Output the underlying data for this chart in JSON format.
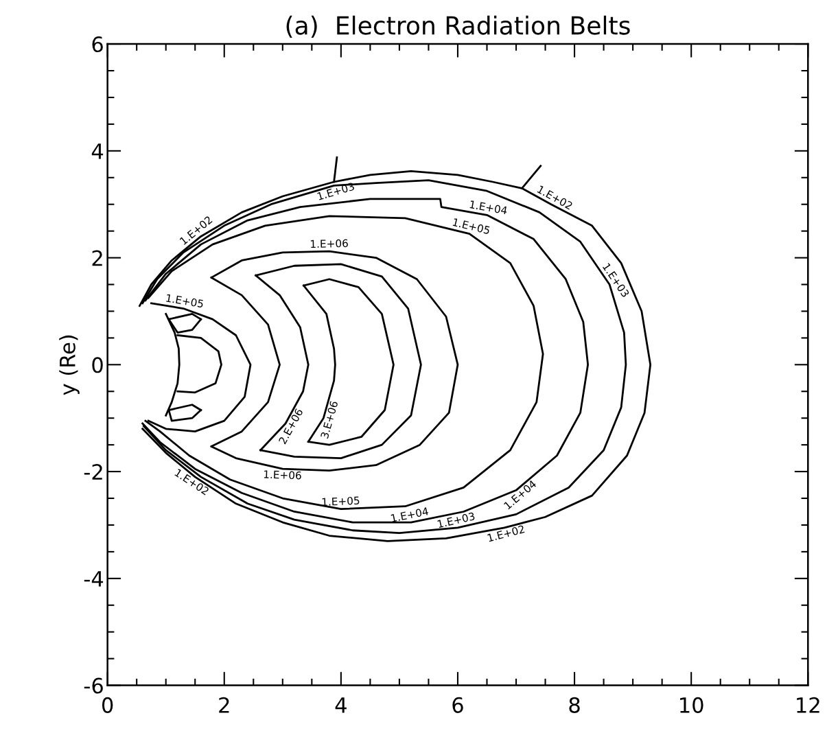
{
  "chart_data": {
    "type": "line",
    "title": "(a)  Electron Radiation Belts",
    "ylabel": "y (Re)",
    "xlim": [
      0,
      12
    ],
    "ylim": [
      -6,
      6
    ],
    "xticks": [
      0,
      2,
      4,
      6,
      8,
      10,
      12
    ],
    "yticks": [
      -6,
      -4,
      -2,
      0,
      2,
      4,
      6
    ],
    "grid": false,
    "marker": "none",
    "line_style": "solid",
    "series": [
      {
        "color": "#000000",
        "x": [
          0.55,
          0.75,
          1.1,
          1.6,
          2.3,
          3.0,
          3.88,
          4.5,
          5.2,
          6.0,
          6.6,
          7.1,
          7.6,
          8.3,
          8.8,
          9.15,
          9.3,
          9.2,
          8.9,
          8.3,
          7.5,
          6.8,
          5.8,
          4.8,
          3.8,
          3.0,
          2.2,
          1.5,
          1.0,
          0.6
        ],
        "values": [
          1.1,
          1.5,
          1.95,
          2.4,
          2.85,
          3.15,
          3.42,
          3.55,
          3.62,
          3.55,
          3.42,
          3.3,
          3.0,
          2.6,
          1.9,
          1.0,
          0.0,
          -0.9,
          -1.7,
          -2.45,
          -2.85,
          -3.05,
          -3.25,
          -3.3,
          -3.2,
          -2.95,
          -2.6,
          -2.1,
          -1.65,
          -1.2
        ]
      },
      {
        "color": "#000000",
        "x": [
          3.88,
          3.93
        ],
        "values": [
          3.42,
          3.88
        ]
      },
      {
        "color": "#000000",
        "x": [
          7.1,
          7.42
        ],
        "values": [
          3.3,
          3.72
        ]
      },
      {
        "color": "#000000",
        "x": [
          0.6,
          0.85,
          1.3,
          2.0,
          2.8,
          3.88,
          4.6,
          5.5,
          6.5,
          7.4,
          8.1,
          8.6,
          8.85,
          8.88,
          8.8,
          8.5,
          7.9,
          7.0,
          6.0,
          5.0,
          4.2,
          3.2,
          2.4,
          1.6,
          1.0,
          0.62
        ],
        "values": [
          1.15,
          1.6,
          2.1,
          2.6,
          3.0,
          3.35,
          3.4,
          3.45,
          3.25,
          2.85,
          2.3,
          1.5,
          0.6,
          0.0,
          -0.8,
          -1.6,
          -2.3,
          -2.8,
          -3.05,
          -3.15,
          -3.1,
          -2.9,
          -2.6,
          -2.1,
          -1.6,
          -1.15
        ]
      },
      {
        "color": "#000000",
        "x": [
          0.65,
          1.0,
          1.6,
          2.4,
          3.3,
          4.5,
          5.7,
          5.72,
          6.5,
          7.3,
          7.85,
          8.15,
          8.23,
          8.1,
          7.7,
          7.0,
          6.1,
          5.2,
          4.2,
          3.2,
          2.3,
          1.5,
          0.9,
          0.6
        ],
        "values": [
          1.2,
          1.7,
          2.25,
          2.7,
          2.95,
          3.1,
          3.1,
          2.95,
          2.8,
          2.35,
          1.6,
          0.8,
          0.0,
          -0.9,
          -1.7,
          -2.35,
          -2.75,
          -2.95,
          -2.95,
          -2.75,
          -2.4,
          -1.95,
          -1.45,
          -1.1
        ]
      },
      {
        "color": "#000000",
        "x": [
          0.7,
          1.1,
          1.8,
          2.7,
          3.8,
          5.1,
          6.2,
          6.9,
          7.3,
          7.46,
          7.35,
          6.9,
          6.1,
          5.1,
          4.0,
          3.0,
          2.1,
          1.4,
          0.9,
          0.65
        ],
        "values": [
          1.25,
          1.75,
          2.25,
          2.6,
          2.78,
          2.74,
          2.45,
          1.9,
          1.1,
          0.2,
          -0.7,
          -1.6,
          -2.3,
          -2.65,
          -2.7,
          -2.5,
          -2.15,
          -1.7,
          -1.25,
          -1.05
        ]
      },
      {
        "color": "#000000",
        "x": [
          0.75,
          1.3,
          1.8,
          2.2,
          2.45,
          2.35,
          2.0,
          1.5,
          1.0,
          0.7
        ],
        "values": [
          1.15,
          1.05,
          0.85,
          0.55,
          0.0,
          -0.6,
          -1.05,
          -1.25,
          -1.2,
          -1.05
        ]
      },
      {
        "color": "#000000",
        "x": [
          1.78,
          2.3,
          3.0,
          3.8,
          4.6,
          5.3,
          5.8,
          6.0,
          5.85,
          5.35,
          4.6,
          3.8,
          3.0,
          2.2,
          1.78
        ],
        "values": [
          1.63,
          1.95,
          2.1,
          2.12,
          2.0,
          1.6,
          0.9,
          0.0,
          -0.9,
          -1.5,
          -1.88,
          -1.98,
          -1.95,
          -1.75,
          -1.53
        ]
      },
      {
        "color": "#000000",
        "x": [
          1.78,
          2.3,
          2.75,
          2.95,
          2.75,
          2.3,
          1.78
        ],
        "values": [
          1.63,
          1.3,
          0.75,
          0.0,
          -0.7,
          -1.25,
          -1.53
        ]
      },
      {
        "color": "#000000",
        "x": [
          2.54,
          3.2,
          4.0,
          4.7,
          5.15,
          5.37,
          5.2,
          4.7,
          4.0,
          3.2,
          2.62
        ],
        "values": [
          1.67,
          1.85,
          1.88,
          1.65,
          1.05,
          0.0,
          -0.95,
          -1.5,
          -1.75,
          -1.72,
          -1.6
        ]
      },
      {
        "color": "#000000",
        "x": [
          2.54,
          2.95,
          3.3,
          3.44,
          3.35,
          3.05,
          2.62
        ],
        "values": [
          1.67,
          1.3,
          0.7,
          0.0,
          -0.5,
          -1.1,
          -1.6
        ]
      },
      {
        "color": "#000000",
        "x": [
          3.36,
          3.8,
          4.3,
          4.7,
          4.9,
          4.75,
          4.35,
          3.8,
          3.44
        ],
        "values": [
          1.48,
          1.6,
          1.45,
          0.95,
          0.0,
          -0.85,
          -1.35,
          -1.5,
          -1.44
        ]
      },
      {
        "color": "#000000",
        "x": [
          3.36,
          3.75,
          3.88,
          3.9,
          3.88,
          3.7,
          3.44
        ],
        "values": [
          1.48,
          0.95,
          0.3,
          0.0,
          -0.3,
          -1.0,
          -1.44
        ]
      },
      {
        "color": "#000000",
        "x": [
          1.2,
          1.6,
          1.9,
          1.95,
          1.85,
          1.5,
          1.2
        ],
        "values": [
          0.55,
          0.5,
          0.25,
          0.0,
          -0.35,
          -0.52,
          -0.5
        ]
      },
      {
        "color": "#000000",
        "x": [
          1.0,
          1.15,
          1.22,
          1.23,
          1.2,
          1.1,
          1.0
        ],
        "values": [
          0.95,
          0.6,
          0.3,
          0.0,
          -0.35,
          -0.7,
          -0.95
        ]
      },
      {
        "color": "#000000",
        "x": [
          1.05,
          1.45,
          1.6
        ],
        "values": [
          0.85,
          0.95,
          0.85
        ]
      },
      {
        "color": "#000000",
        "x": [
          1.05,
          1.2,
          1.45,
          1.6
        ],
        "values": [
          0.85,
          0.6,
          0.65,
          0.85
        ]
      },
      {
        "color": "#000000",
        "x": [
          1.05,
          1.45,
          1.6
        ],
        "values": [
          -0.85,
          -0.75,
          -0.85
        ]
      },
      {
        "color": "#000000",
        "x": [
          1.05,
          1.1,
          1.45,
          1.6
        ],
        "values": [
          -0.85,
          -1.05,
          -1.0,
          -0.85
        ]
      }
    ],
    "annotations": [
      {
        "text": "1.E+02",
        "x": 1.6,
        "y": 2.4
      },
      {
        "text": "1.E+03",
        "x": 3.88,
        "y": 3.35
      },
      {
        "text": "1.E+04",
        "x": 6.5,
        "y": 2.8
      },
      {
        "text": "1.E+02",
        "x": 7.6,
        "y": 3.0
      },
      {
        "text": "1.E+05",
        "x": 6.2,
        "y": 2.45
      },
      {
        "text": "1.E+06",
        "x": 3.8,
        "y": 2.12
      },
      {
        "text": "1.E+05",
        "x": 1.3,
        "y": 1.05
      },
      {
        "text": "1.E+03",
        "x": 8.6,
        "y": 1.5
      },
      {
        "text": "2.E+06",
        "x": 3.05,
        "y": -1.1
      },
      {
        "text": "3.E+06",
        "x": 3.7,
        "y": -1.0
      },
      {
        "text": "1.E+06",
        "x": 3.0,
        "y": -1.95
      },
      {
        "text": "1.E+05",
        "x": 4.0,
        "y": -2.7
      },
      {
        "text": "1.E+04",
        "x": 5.2,
        "y": -2.95
      },
      {
        "text": "1.E+02",
        "x": 6.8,
        "y": -3.05
      },
      {
        "text": "1.E+03",
        "x": 6.0,
        "y": -3.05
      },
      {
        "text": "1.E+04",
        "x": 7.0,
        "y": -2.35
      },
      {
        "text": "1.E+02",
        "x": 1.5,
        "y": -2.1
      }
    ]
  }
}
